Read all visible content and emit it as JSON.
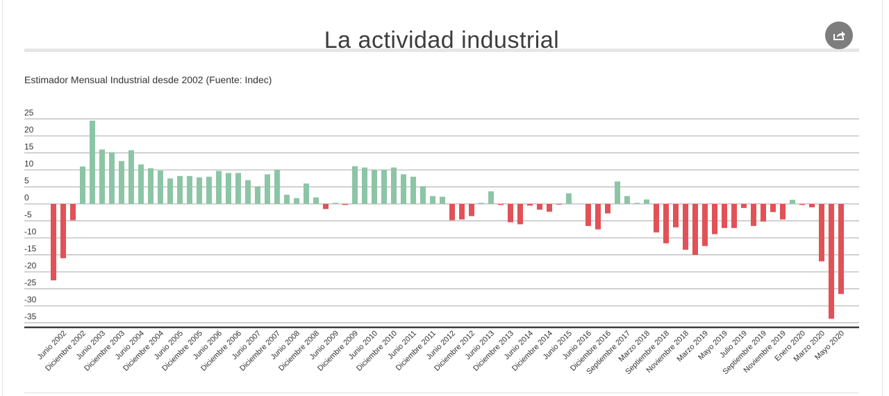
{
  "header": {
    "title": "La actividad industrial",
    "share_icon": "share-icon"
  },
  "colors": {
    "positive": "#8cc5a6",
    "negative": "#e05257",
    "grid": "#a8a8a8",
    "axis": "#3a3a3a"
  },
  "chart_data": {
    "type": "bar",
    "title": "La actividad industrial",
    "subtitle": "Estimador Mensual Industrial desde 2002 (Fuente: Indec)",
    "xlabel": "",
    "ylabel": "",
    "ylim": [
      -35,
      25
    ],
    "yticks": [
      25,
      20,
      15,
      10,
      5,
      0,
      -5,
      -10,
      -15,
      -20,
      -25,
      -30,
      -35
    ],
    "grid": true,
    "legend": "none",
    "categories": [
      "",
      "Junio 2002",
      "",
      "Diciembre 2002",
      "",
      "Junio 2003",
      "",
      "Diciembre 2003",
      "",
      "Junio 2004",
      "",
      "Diciembre 2004",
      "",
      "Junio 2005",
      "",
      "Diciembre 2005",
      "",
      "Junio 2006",
      "",
      "Diciembre 2006",
      "",
      "Junio 2007",
      "",
      "Diciembre 2007",
      "",
      "Junio 2008",
      "",
      "Diciembre 2008",
      "",
      "Junio 2009",
      "",
      "Diciembre 2009",
      "",
      "Junio 2010",
      "",
      "Diciembre 2010",
      "",
      "Junio 2011",
      "",
      "Diciembre 2011",
      "",
      "Junio 2012",
      "",
      "Diciembre 2012",
      "",
      "Junio 2013",
      "",
      "Diciembre 2013",
      "",
      "Junio 2014",
      "",
      "Diciembre 2014",
      "",
      "Junio 2015",
      "",
      "Junio 2016",
      "",
      "Diciembre 2016",
      "",
      "Septiembre 2017",
      "",
      "Marzo 2018",
      "",
      "Septiembre 2018",
      "",
      "Noviembre 2018",
      "",
      "Marzo 2019",
      "",
      "Mayo 2019",
      "",
      "Julio 2019",
      "",
      "Septiembre 2019",
      "",
      "Noviembre 2019",
      "",
      "Enero 2020",
      "",
      "Marzo 2020",
      "",
      "Mayo 2020"
    ],
    "values": [
      -22.5,
      -16.0,
      -4.8,
      11.0,
      24.5,
      16.0,
      15.2,
      12.6,
      15.8,
      11.6,
      10.5,
      9.8,
      7.5,
      8.2,
      8.2,
      7.8,
      8.0,
      9.7,
      9.1,
      9.1,
      7.0,
      5.2,
      8.7,
      10.0,
      2.7,
      1.7,
      6.0,
      1.9,
      -1.5,
      0.3,
      -0.3,
      11.1,
      10.7,
      10.0,
      10.0,
      10.7,
      8.7,
      8.0,
      5.2,
      2.3,
      2.1,
      -4.8,
      -4.6,
      -3.6,
      0.3,
      3.7,
      -0.3,
      -5.4,
      -6.0,
      -0.5,
      -1.7,
      -2.3,
      -0.2,
      3.1,
      0.0,
      -6.5,
      -7.5,
      -2.8,
      6.6,
      2.3,
      0.3,
      1.3,
      -8.4,
      -11.6,
      -6.9,
      -13.5,
      -15.0,
      -12.4,
      -8.9,
      -7.1,
      -7.1,
      -1.2,
      -6.5,
      -5.2,
      -2.4,
      -4.6,
      1.2,
      -0.3,
      -1.0,
      -16.9,
      -33.8,
      -26.5
    ]
  }
}
